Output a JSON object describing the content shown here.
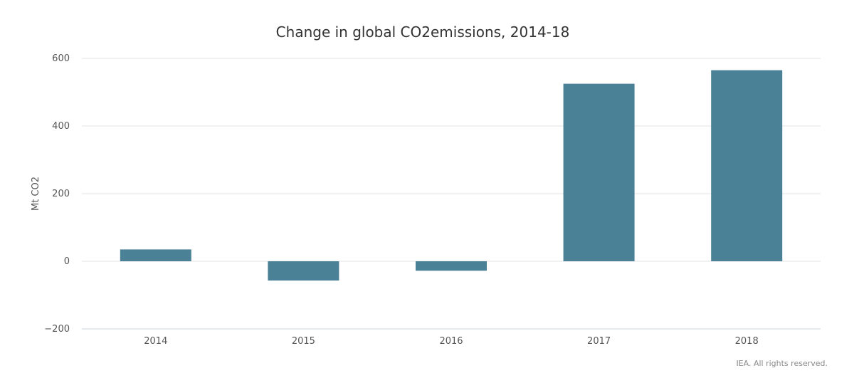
{
  "chart_data": {
    "type": "bar",
    "title": "Change in global CO2emissions, 2014-18",
    "xlabel": "",
    "ylabel": "Mt CO2",
    "categories": [
      "2014",
      "2015",
      "2016",
      "2017",
      "2018"
    ],
    "values": [
      35,
      -57,
      -28,
      525,
      565
    ],
    "ylim": [
      -200,
      600
    ],
    "yticks": [
      -200,
      0,
      200,
      400,
      600
    ],
    "ytick_labels": [
      "−200",
      "0",
      "200",
      "400",
      "600"
    ],
    "grid": true,
    "legend": "none",
    "colors": {
      "bar": "#4a8196",
      "grid": "#e3e3e3",
      "axis": "#c9d6e0"
    }
  },
  "credit": "IEA. All rights reserved."
}
